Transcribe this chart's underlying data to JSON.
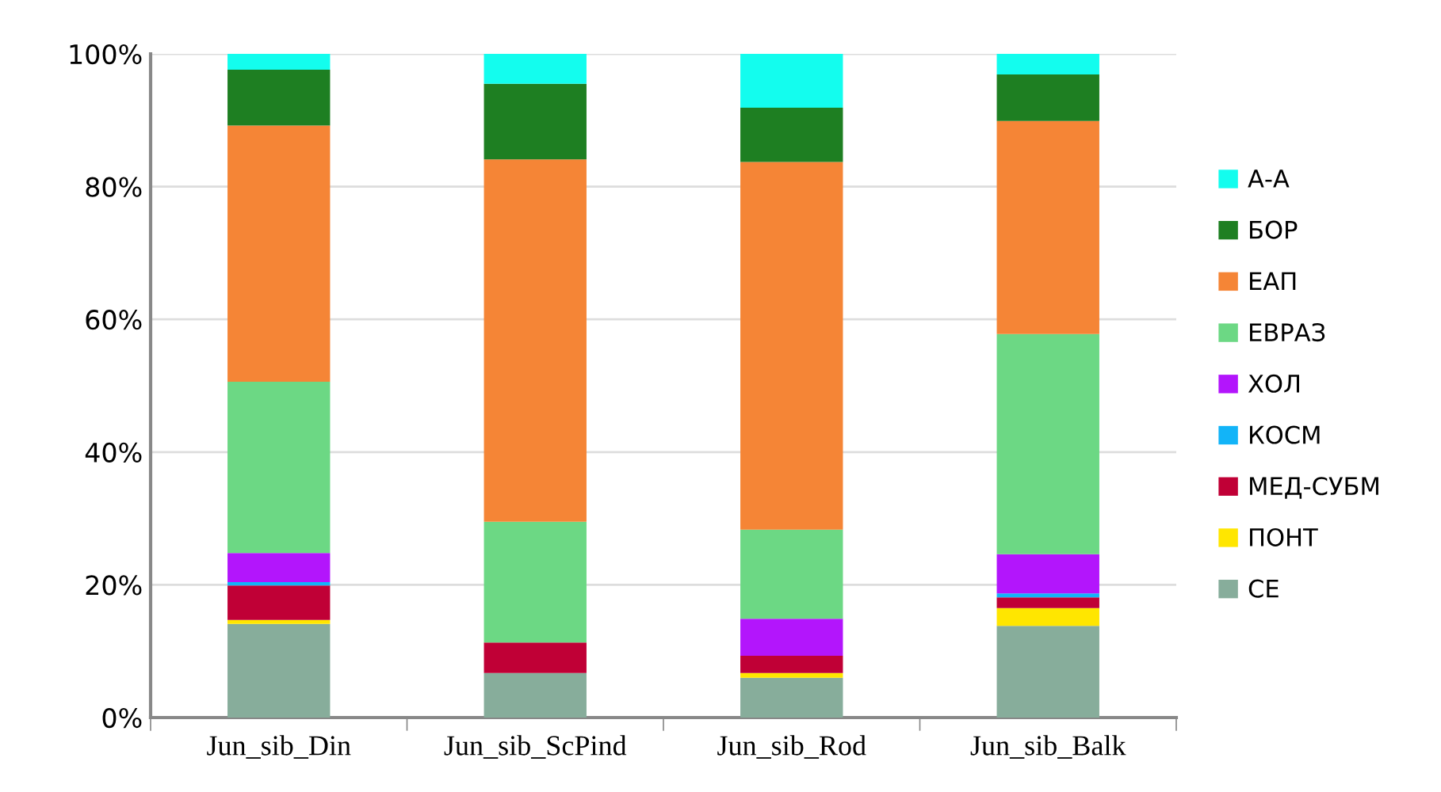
{
  "chart_data": {
    "type": "bar",
    "stacked": true,
    "categories": [
      "Jun_sib_Din",
      "Jun_sib_ScPind",
      "Jun_sib_Rod",
      "Jun_sib_Balk"
    ],
    "series": [
      {
        "name": "СЕ",
        "color": "#87ad9b",
        "values": [
          14.1,
          6.7,
          6.0,
          13.8
        ]
      },
      {
        "name": "ПОНТ",
        "color": "#ffe600",
        "values": [
          0.6,
          0,
          0.7,
          2.7
        ]
      },
      {
        "name": "МЕД-СУБМ",
        "color": "#c00036",
        "values": [
          5.2,
          4.6,
          2.6,
          1.6
        ]
      },
      {
        "name": "КОСМ",
        "color": "#12b4f8",
        "values": [
          0.5,
          0,
          0,
          0.6
        ]
      },
      {
        "name": "ХОЛ",
        "color": "#b315fc",
        "values": [
          4.4,
          0,
          5.6,
          5.9
        ]
      },
      {
        "name": "ЕВРАЗ",
        "color": "#6cd884",
        "values": [
          25.8,
          18.2,
          13.4,
          33.2
        ]
      },
      {
        "name": "ЕАП",
        "color": "#f58536",
        "values": [
          38.6,
          54.6,
          55.4,
          32.1
        ]
      },
      {
        "name": "БОР",
        "color": "#1e7f22",
        "values": [
          8.4,
          11.4,
          8.2,
          7.0
        ]
      },
      {
        "name": "А-А",
        "color": "#13fdee",
        "values": [
          2.4,
          4.5,
          8.1,
          3.1
        ]
      }
    ],
    "ylim": [
      0,
      100
    ],
    "yticks": [
      {
        "value": 0,
        "label": "0%"
      },
      {
        "value": 20,
        "label": "20%"
      },
      {
        "value": 40,
        "label": "40%"
      },
      {
        "value": 60,
        "label": "60%"
      },
      {
        "value": 80,
        "label": "80%"
      },
      {
        "value": 100,
        "label": "100%"
      }
    ],
    "grid": "y",
    "legend": "right"
  }
}
